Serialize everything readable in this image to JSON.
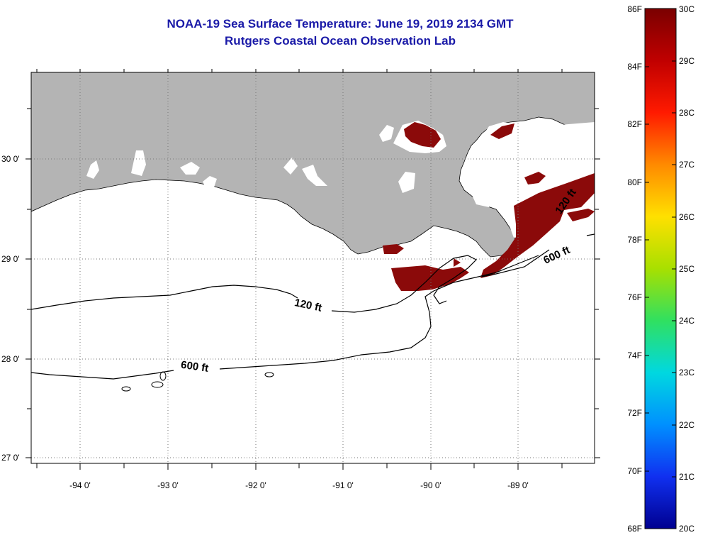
{
  "title": {
    "line1": "NOAA-19 Sea Surface Temperature:  June 19, 2019 2134 GMT",
    "line2": "Rutgers Coastal Ocean Observation Lab"
  },
  "map": {
    "lon_labels": [
      "-94 0'",
      "-93 0'",
      "-92 0'",
      "-91 0'",
      "-90 0'",
      "-89 0'"
    ],
    "lat_labels": [
      "30 0'",
      "29 0'",
      "28 0'",
      "27 0'"
    ],
    "contour_labels": [
      "120 ft",
      "600 ft",
      "120 ft",
      "600 ft"
    ],
    "colors": {
      "land": "#b4b4b4",
      "cloud": "#ffffff",
      "warm_water": "#8b0a0a",
      "title": "#1a1aa8"
    }
  },
  "colorbar": {
    "f_labels": [
      "86F",
      "84F",
      "82F",
      "80F",
      "78F",
      "76F",
      "74F",
      "72F",
      "70F",
      "68F"
    ],
    "c_labels": [
      "30C",
      "29C",
      "28C",
      "27C",
      "26C",
      "25C",
      "24C",
      "23C",
      "22C",
      "21C",
      "20C"
    ],
    "range_f": [
      68,
      86
    ],
    "range_c": [
      20,
      30
    ]
  }
}
